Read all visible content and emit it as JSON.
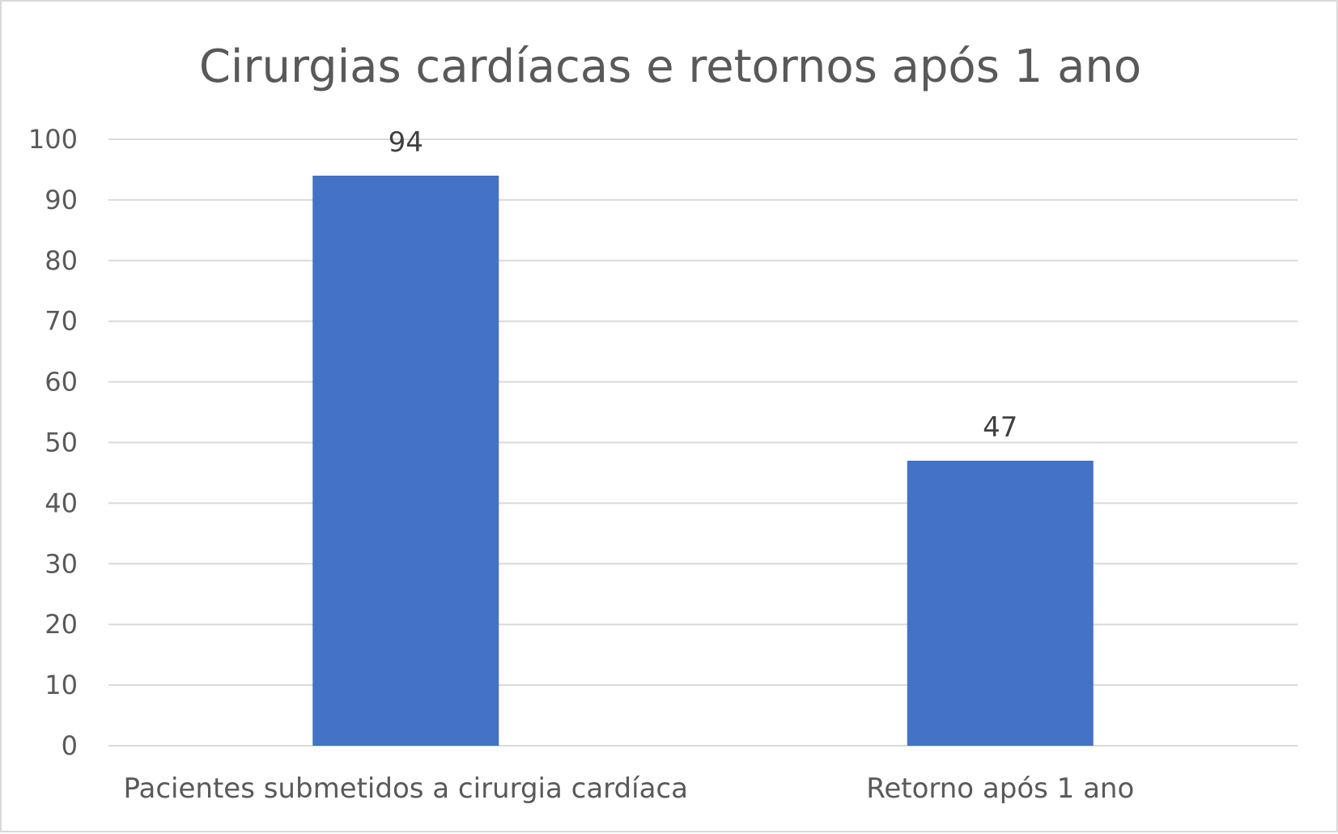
{
  "chart_data": {
    "type": "bar",
    "title": "Cirurgias cardíacas e retornos após 1 ano",
    "categories": [
      "Pacientes submetidos a cirurgia cardíaca",
      "Retorno após 1 ano"
    ],
    "values": [
      94,
      47
    ],
    "data_labels": [
      "94",
      "47"
    ],
    "ylim": [
      0,
      100
    ],
    "y_ticks": [
      0,
      10,
      20,
      30,
      40,
      50,
      60,
      70,
      80,
      90,
      100
    ],
    "grid": true,
    "legend": "none",
    "bar_color": "#4472c4",
    "grid_color": "#d9d9d9",
    "text_color": "#595959"
  }
}
